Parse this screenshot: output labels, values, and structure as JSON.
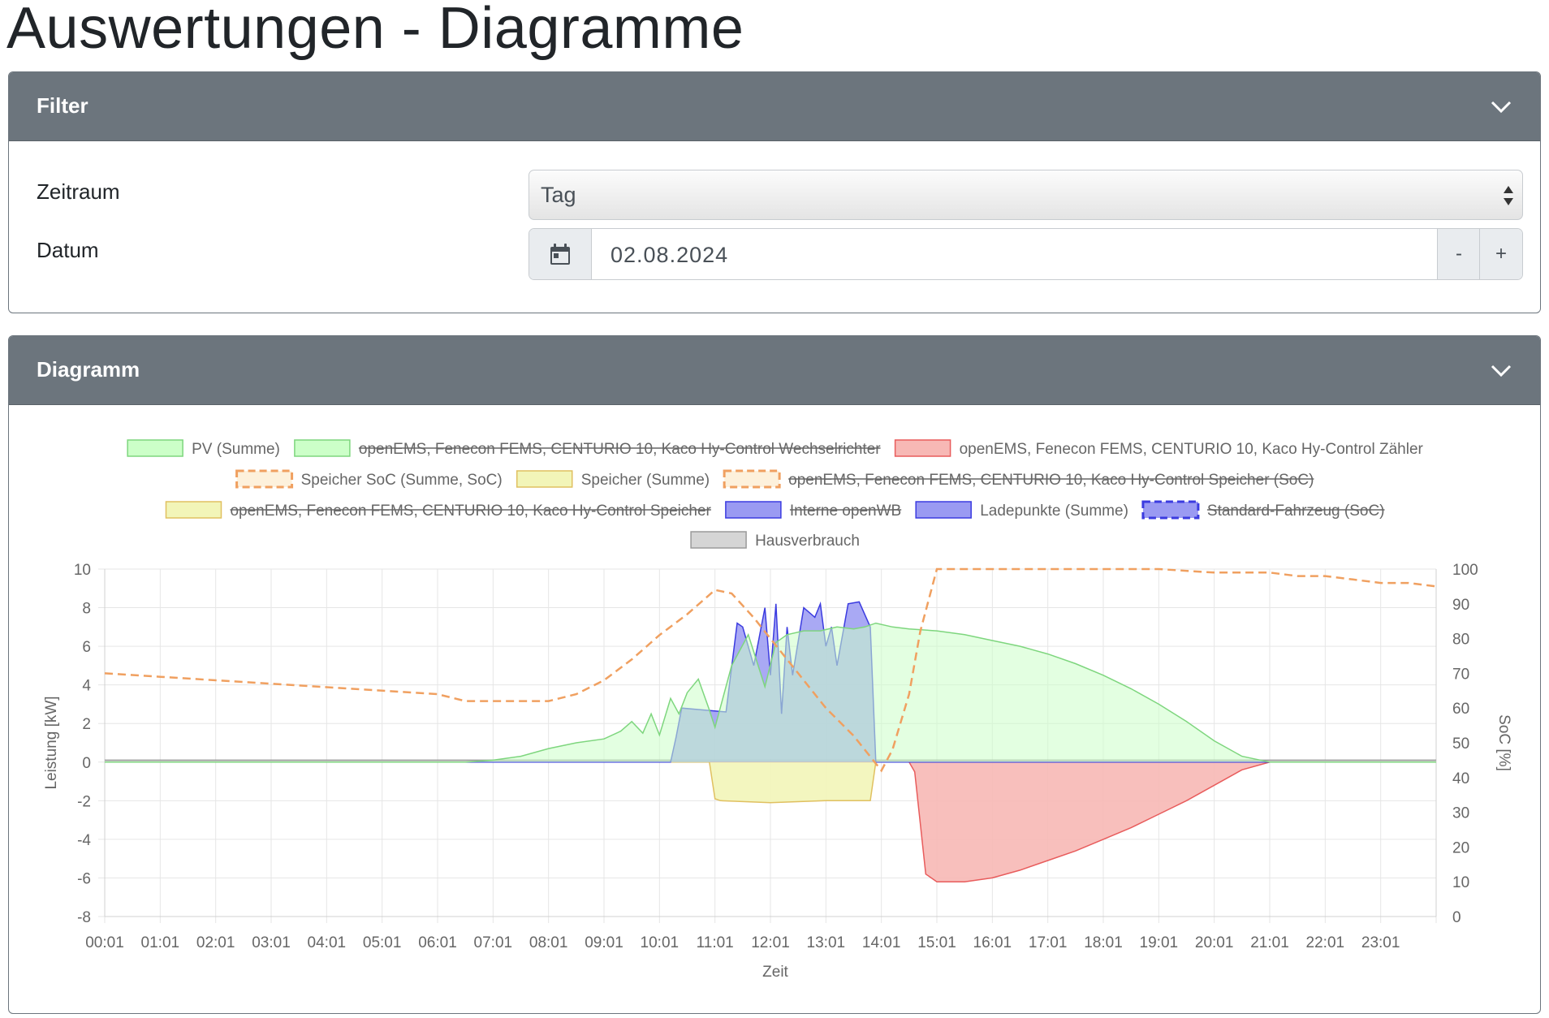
{
  "page": {
    "title": "Auswertungen - Diagramme"
  },
  "filter": {
    "header": "Filter",
    "zeitraum_label": "Zeitraum",
    "zeitraum_value": "Tag",
    "datum_label": "Datum",
    "datum_value": "02.08.2024",
    "minus_label": "-",
    "plus_label": "+"
  },
  "diagram": {
    "header": "Diagramm"
  },
  "colors": {
    "pv": "#7ed67e",
    "pv_fill": "#ccffc8",
    "grid": "#e85c5c",
    "grid_fill": "#f7b8b5",
    "soc": "#f0a060",
    "battery": "#e0c060",
    "battery_fill": "#f2f5b8",
    "charge": "#3b3be0",
    "charge_fill": "#9a9af2",
    "house": "#9a9a9a",
    "house_fill": "#d5d5d5"
  },
  "chart_data": {
    "type": "area",
    "xlabel": "Zeit",
    "ylabel_left": "Leistung [kW]",
    "ylabel_right": "SoC [%]",
    "ylim_left": [
      -8,
      10
    ],
    "ylim_right": [
      0,
      100
    ],
    "yticks_left": [
      "10",
      "8",
      "6",
      "4",
      "2",
      "0",
      "-2",
      "-4",
      "-6",
      "-8"
    ],
    "yticks_right": [
      "100",
      "90",
      "80",
      "70",
      "60",
      "50",
      "40",
      "30",
      "20",
      "10",
      "0"
    ],
    "xticks": [
      "00:01",
      "01:01",
      "02:01",
      "03:01",
      "04:01",
      "05:01",
      "06:01",
      "07:01",
      "08:01",
      "09:01",
      "10:01",
      "11:01",
      "12:01",
      "13:01",
      "14:01",
      "15:01",
      "16:01",
      "17:01",
      "18:01",
      "19:01",
      "20:01",
      "21:01",
      "22:01",
      "23:01"
    ],
    "grid": true,
    "legend_position": "top",
    "legend": [
      {
        "label": "PV (Summe)",
        "style": "pv",
        "hidden": false
      },
      {
        "label": "openEMS, Fenecon FEMS, CENTURIO 10, Kaco Hy-Control Wechselrichter",
        "style": "pv",
        "hidden": true
      },
      {
        "label": "openEMS, Fenecon FEMS, CENTURIO 10, Kaco Hy-Control Zähler",
        "style": "grid",
        "hidden": false
      },
      {
        "label": "Speicher SoC (Summe, SoC)",
        "style": "soc",
        "hidden": false
      },
      {
        "label": "Speicher (Summe)",
        "style": "battery",
        "hidden": false
      },
      {
        "label": "openEMS, Fenecon FEMS, CENTURIO 10, Kaco Hy-Control Speicher (SoC)",
        "style": "soc",
        "hidden": true
      },
      {
        "label": "openEMS, Fenecon FEMS, CENTURIO 10, Kaco Hy-Control Speicher",
        "style": "battery",
        "hidden": true
      },
      {
        "label": "Interne openWB",
        "style": "charge",
        "hidden": true
      },
      {
        "label": "Ladepunkte (Summe)",
        "style": "charge",
        "hidden": false
      },
      {
        "label": "Standard-Fahrzeug (SoC)",
        "style": "vehsoc",
        "hidden": true
      },
      {
        "label": "Hausverbrauch",
        "style": "house",
        "hidden": false
      }
    ],
    "series": [
      {
        "name": "PV (Summe)",
        "axis": "left",
        "x": [
          0,
          6.5,
          7,
          7.5,
          8,
          8.5,
          9,
          9.3,
          9.5,
          9.7,
          9.85,
          10,
          10.2,
          10.35,
          10.5,
          10.7,
          10.9,
          11.0,
          11.3,
          11.6,
          11.9,
          12.1,
          12.3,
          12.6,
          12.9,
          13.2,
          13.5,
          13.7,
          13.9,
          14.2,
          14.5,
          15,
          15.5,
          16,
          16.5,
          17,
          17.5,
          18,
          18.5,
          19,
          19.5,
          20,
          20.5,
          21,
          22,
          23,
          24
        ],
        "values": [
          0,
          0,
          0.1,
          0.3,
          0.7,
          1.0,
          1.2,
          1.6,
          2.1,
          1.5,
          2.5,
          1.4,
          3.3,
          2.5,
          3.6,
          4.3,
          2.7,
          1.8,
          5.0,
          6.6,
          3.9,
          6.2,
          6.6,
          6.8,
          6.8,
          7.0,
          6.9,
          7.0,
          7.2,
          7.0,
          6.9,
          6.8,
          6.6,
          6.3,
          6.0,
          5.6,
          5.1,
          4.5,
          3.8,
          3.0,
          2.1,
          1.1,
          0.3,
          0,
          0,
          0,
          0
        ]
      },
      {
        "name": "openEMS, Fenecon FEMS, CENTURIO 10, Kaco Hy-Control Zähler",
        "axis": "left",
        "x": [
          0,
          14.5,
          14.6,
          14.8,
          15,
          15.5,
          16,
          16.5,
          17,
          17.5,
          18,
          18.5,
          19,
          19.5,
          20,
          20.5,
          21,
          24
        ],
        "values": [
          0,
          0,
          -0.5,
          -5.8,
          -6.2,
          -6.2,
          -6.0,
          -5.6,
          -5.1,
          -4.6,
          -4.0,
          -3.4,
          -2.7,
          -2.0,
          -1.2,
          -0.4,
          0,
          0
        ]
      },
      {
        "name": "Speicher SoC (Summe, SoC)",
        "axis": "right",
        "x": [
          0,
          1,
          2,
          3,
          4,
          5,
          6,
          6.5,
          7,
          7.5,
          8,
          8.5,
          9,
          9.5,
          10,
          10.5,
          11,
          11.3,
          11.7,
          12,
          12.5,
          13,
          13.5,
          14,
          14.2,
          14.5,
          14.7,
          15,
          16,
          17,
          18,
          19,
          20,
          21,
          21.5,
          22,
          22.5,
          23,
          23.5,
          24
        ],
        "values": [
          70,
          69,
          68,
          67,
          66,
          65,
          64,
          62,
          62,
          62,
          62,
          64,
          68,
          74,
          81,
          87,
          94,
          93,
          86,
          80,
          70,
          60,
          52,
          42,
          48,
          64,
          82,
          100,
          100,
          100,
          100,
          100,
          99,
          99,
          98,
          98,
          97,
          96,
          96,
          95
        ]
      },
      {
        "name": "Speicher (Summe)",
        "axis": "left",
        "x": [
          0,
          10.9,
          11.0,
          11.1,
          12,
          13,
          13.5,
          13.8,
          13.9,
          24
        ],
        "values": [
          0,
          0,
          -1.9,
          -2.0,
          -2.1,
          -2.0,
          -2.0,
          -2.0,
          0,
          0
        ]
      },
      {
        "name": "Ladepunkte (Summe)",
        "axis": "left",
        "x": [
          0,
          10.2,
          10.3,
          10.4,
          11.2,
          11.4,
          11.5,
          11.7,
          11.9,
          12.0,
          12.1,
          12.2,
          12.3,
          12.4,
          12.6,
          12.8,
          12.9,
          13.0,
          13.1,
          13.2,
          13.4,
          13.6,
          13.8,
          13.9,
          24
        ],
        "values": [
          0,
          0,
          1.3,
          2.8,
          2.6,
          7.2,
          7.0,
          5.0,
          8.0,
          4.5,
          8.2,
          2.5,
          7.0,
          4.5,
          8.0,
          7.5,
          8.2,
          6.0,
          7.0,
          5.0,
          8.2,
          8.3,
          7.0,
          0,
          0
        ]
      },
      {
        "name": "Hausverbrauch",
        "axis": "left",
        "x": [
          0,
          24
        ],
        "values": [
          0.1,
          0.1
        ]
      }
    ]
  }
}
